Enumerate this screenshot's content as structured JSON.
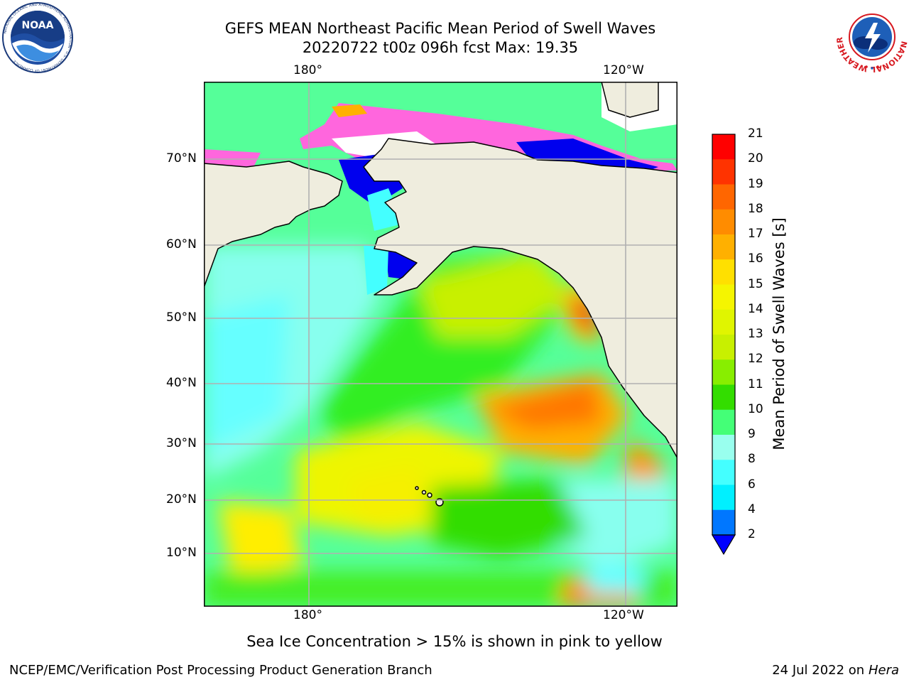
{
  "header": {
    "title_line1": "GEFS MEAN Northeast Pacific Mean Period of Swell Waves",
    "title_line2": "20220722 t00z 096h fcst   Max: 19.35"
  },
  "map": {
    "lon_ticks_top": [
      "180°",
      "120°W"
    ],
    "lon_ticks_bottom": [
      "180°",
      "120°W"
    ],
    "lat_ticks": [
      "70°N",
      "60°N",
      "50°N",
      "40°N",
      "30°N",
      "20°N",
      "10°N"
    ],
    "colors": {
      "land": "#efedde",
      "coast": "#000000",
      "grid": "#b0b0b0"
    }
  },
  "colorbar": {
    "title": "Mean Period of Swell Waves [s]",
    "labels": [
      "21",
      "20",
      "19",
      "18",
      "17",
      "16",
      "15",
      "14",
      "13",
      "12",
      "11",
      "10",
      "9",
      "8",
      "6",
      "4",
      "2"
    ],
    "colors": [
      "#ff0000",
      "#ff3300",
      "#ff6600",
      "#ff8c00",
      "#ffb000",
      "#ffe000",
      "#f5f500",
      "#e0f500",
      "#c8f000",
      "#88ee00",
      "#33dd00",
      "#44ff77",
      "#99ffee",
      "#44ffff",
      "#00f0ff",
      "#0077ff"
    ],
    "under_color": "#0000ff"
  },
  "logos": {
    "noaa": "NOAA",
    "noaa_ring": "NATIONAL OCEANIC AND ATMOSPHERIC ADMINISTRATION · U.S. DEPARTMENT OF COMMERCE",
    "nws_ring": "NATIONAL WEATHER SERVICE"
  },
  "caption": "Sea Ice Concentration > 15% is shown in pink to yellow",
  "footer": {
    "left": "NCEP/EMC/Verification Post Processing Product Generation Branch",
    "right_prefix": "24 Jul 2022 on ",
    "right_host": "Hera"
  }
}
